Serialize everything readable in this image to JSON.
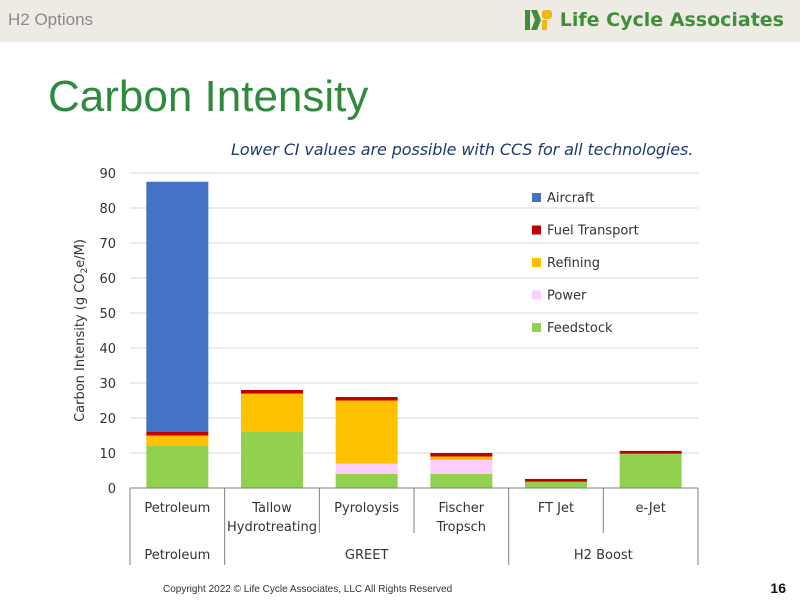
{
  "header": {
    "deck_title": "H2 Options",
    "brand_name": "Life Cycle Associates"
  },
  "slide": {
    "title": "Carbon Intensity",
    "note": "Lower CI values are possible with CCS for all technologies."
  },
  "chart_data": {
    "type": "bar",
    "stacked": true,
    "ylabel": "Carbon Intensity (g CO2e/M)",
    "ylim": [
      0,
      90
    ],
    "yticks": [
      0,
      10,
      20,
      30,
      40,
      50,
      60,
      70,
      80,
      90
    ],
    "grid": true,
    "legend_position": "right",
    "categories": [
      "Petroleum",
      "Tallow Hydrotreating",
      "Pyroloysis",
      "Fischer Tropsch",
      "FT Jet",
      "e-Jet"
    ],
    "category_lines": [
      [
        "Petroleum"
      ],
      [
        "Tallow",
        "Hydrotreating"
      ],
      [
        "Pyroloysis"
      ],
      [
        "Fischer",
        "Tropsch"
      ],
      [
        "FT Jet"
      ],
      [
        "e-Jet"
      ]
    ],
    "groups": [
      {
        "label": "Petroleum",
        "count": 1
      },
      {
        "label": "GREET",
        "count": 3
      },
      {
        "label": "H2 Boost",
        "count": 2
      }
    ],
    "series": [
      {
        "name": "Feedstock",
        "color": "#92d050",
        "values": [
          12,
          16,
          4,
          4,
          1.8,
          9.8
        ]
      },
      {
        "name": "Power",
        "color": "#ffccff",
        "values": [
          0,
          0,
          3,
          4,
          0,
          0
        ]
      },
      {
        "name": "Refining",
        "color": "#ffc000",
        "values": [
          3,
          11,
          18,
          1,
          0,
          0
        ]
      },
      {
        "name": "Fuel Transport",
        "color": "#c00000",
        "values": [
          1,
          1,
          1,
          1,
          0.8,
          0.8
        ]
      },
      {
        "name": "Aircraft",
        "color": "#4472c4",
        "values": [
          71.5,
          0,
          0,
          0,
          0,
          0
        ]
      }
    ]
  },
  "footer": {
    "copyright": "Copyright 2022 © Life Cycle Associates, LLC All Rights Reserved",
    "page_number": "16"
  }
}
